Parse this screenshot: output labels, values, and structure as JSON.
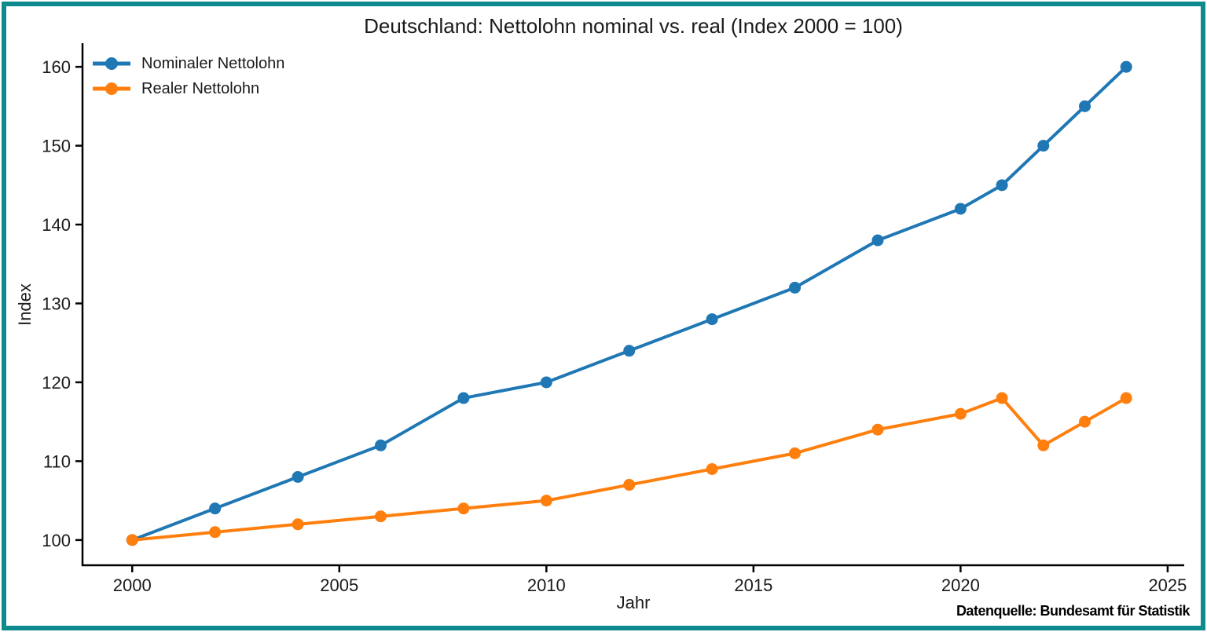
{
  "frame": {
    "border_color": "#0d8a8d",
    "background": "#ffffff"
  },
  "chart_data": {
    "type": "line",
    "title": "Deutschland: Nettolohn nominal vs. real (Index 2000 = 100)",
    "xlabel": "Jahr",
    "ylabel": "Index",
    "source_note": "Datenquelle: Bundesamt für Statistik",
    "x": [
      2000,
      2002,
      2004,
      2006,
      2008,
      2010,
      2012,
      2014,
      2016,
      2018,
      2020,
      2021,
      2022,
      2023,
      2024
    ],
    "series": [
      {
        "name": "Nominaler Nettolohn",
        "color": "#1f77b4",
        "values": [
          100,
          104,
          108,
          112,
          118,
          120,
          124,
          128,
          132,
          138,
          142,
          145,
          150,
          155,
          160
        ]
      },
      {
        "name": "Realer Nettolohn",
        "color": "#ff7f0e",
        "values": [
          100,
          101,
          102,
          103,
          104,
          105,
          107,
          109,
          111,
          114,
          116,
          118,
          112,
          115,
          118
        ]
      }
    ],
    "xticks": [
      2000,
      2005,
      2010,
      2015,
      2020,
      2025
    ],
    "yticks": [
      100,
      110,
      120,
      130,
      140,
      150,
      160
    ],
    "xlim": [
      1998.8,
      2025.4
    ],
    "ylim": [
      96.8,
      163.0
    ],
    "grid": false,
    "legend_position": "upper left",
    "marker": "circle",
    "axis_color": "#000000",
    "text_color": "#1a1a1a"
  }
}
